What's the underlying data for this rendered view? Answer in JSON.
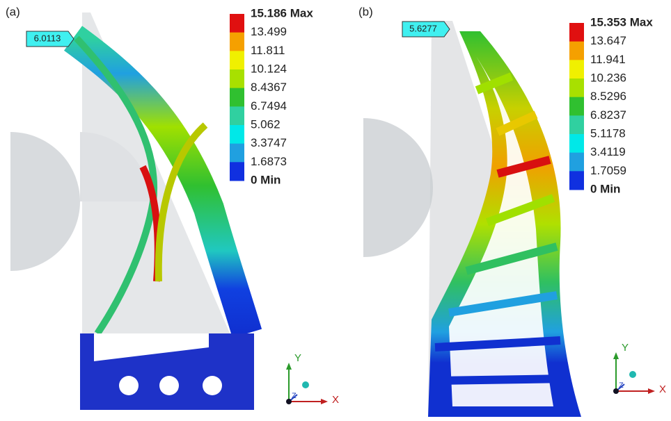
{
  "panels": [
    {
      "label": "(a)",
      "probe": "6.0113",
      "legend": [
        "15.186 Max",
        "13.499",
        "11.811",
        "10.124",
        "8.4367",
        "6.7494",
        "5.062",
        "3.3747",
        "1.6873",
        "0 Min"
      ],
      "axes": {
        "y": "Y",
        "x": "X",
        "z": "Z"
      }
    },
    {
      "label": "(b)",
      "probe": "5.6277",
      "legend": [
        "15.353 Max",
        "13.647",
        "11.941",
        "10.236",
        "8.5296",
        "6.8237",
        "5.1178",
        "3.4119",
        "1.7059",
        "0 Min"
      ],
      "axes": {
        "y": "Y",
        "x": "X",
        "z": "Z"
      }
    }
  ]
}
